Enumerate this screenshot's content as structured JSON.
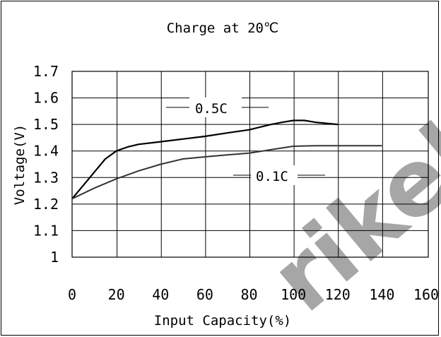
{
  "chart_data": {
    "type": "line",
    "title": "Charge at 20℃",
    "xlabel": "Input Capacity(%)",
    "ylabel": "Voltage(V)",
    "xlim": [
      0,
      160
    ],
    "ylim": [
      1.0,
      1.7
    ],
    "x_ticks": [
      "0",
      "20",
      "40",
      "60",
      "80",
      "100",
      "120",
      "140",
      "160"
    ],
    "y_ticks": [
      "1",
      "1.1",
      "1.2",
      "1.3",
      "1.4",
      "1.5",
      "1.6",
      "1.7"
    ],
    "grid": true,
    "series": [
      {
        "name": "0.5C",
        "color": "#000000",
        "x": [
          0,
          5,
          10,
          15,
          20,
          25,
          30,
          40,
          50,
          60,
          70,
          80,
          90,
          95,
          100,
          105,
          110,
          120
        ],
        "y": [
          1.22,
          1.27,
          1.32,
          1.37,
          1.4,
          1.415,
          1.425,
          1.435,
          1.445,
          1.455,
          1.468,
          1.48,
          1.5,
          1.508,
          1.515,
          1.515,
          1.508,
          1.5
        ]
      },
      {
        "name": "0.1C",
        "color": "#333333",
        "x": [
          0,
          10,
          20,
          30,
          40,
          50,
          60,
          70,
          80,
          90,
          100,
          110,
          120,
          140
        ],
        "y": [
          1.22,
          1.26,
          1.295,
          1.325,
          1.35,
          1.37,
          1.378,
          1.385,
          1.392,
          1.405,
          1.418,
          1.42,
          1.42,
          1.42
        ]
      }
    ],
    "watermark": "rikel",
    "watermark_color": "#f2a7a7"
  }
}
